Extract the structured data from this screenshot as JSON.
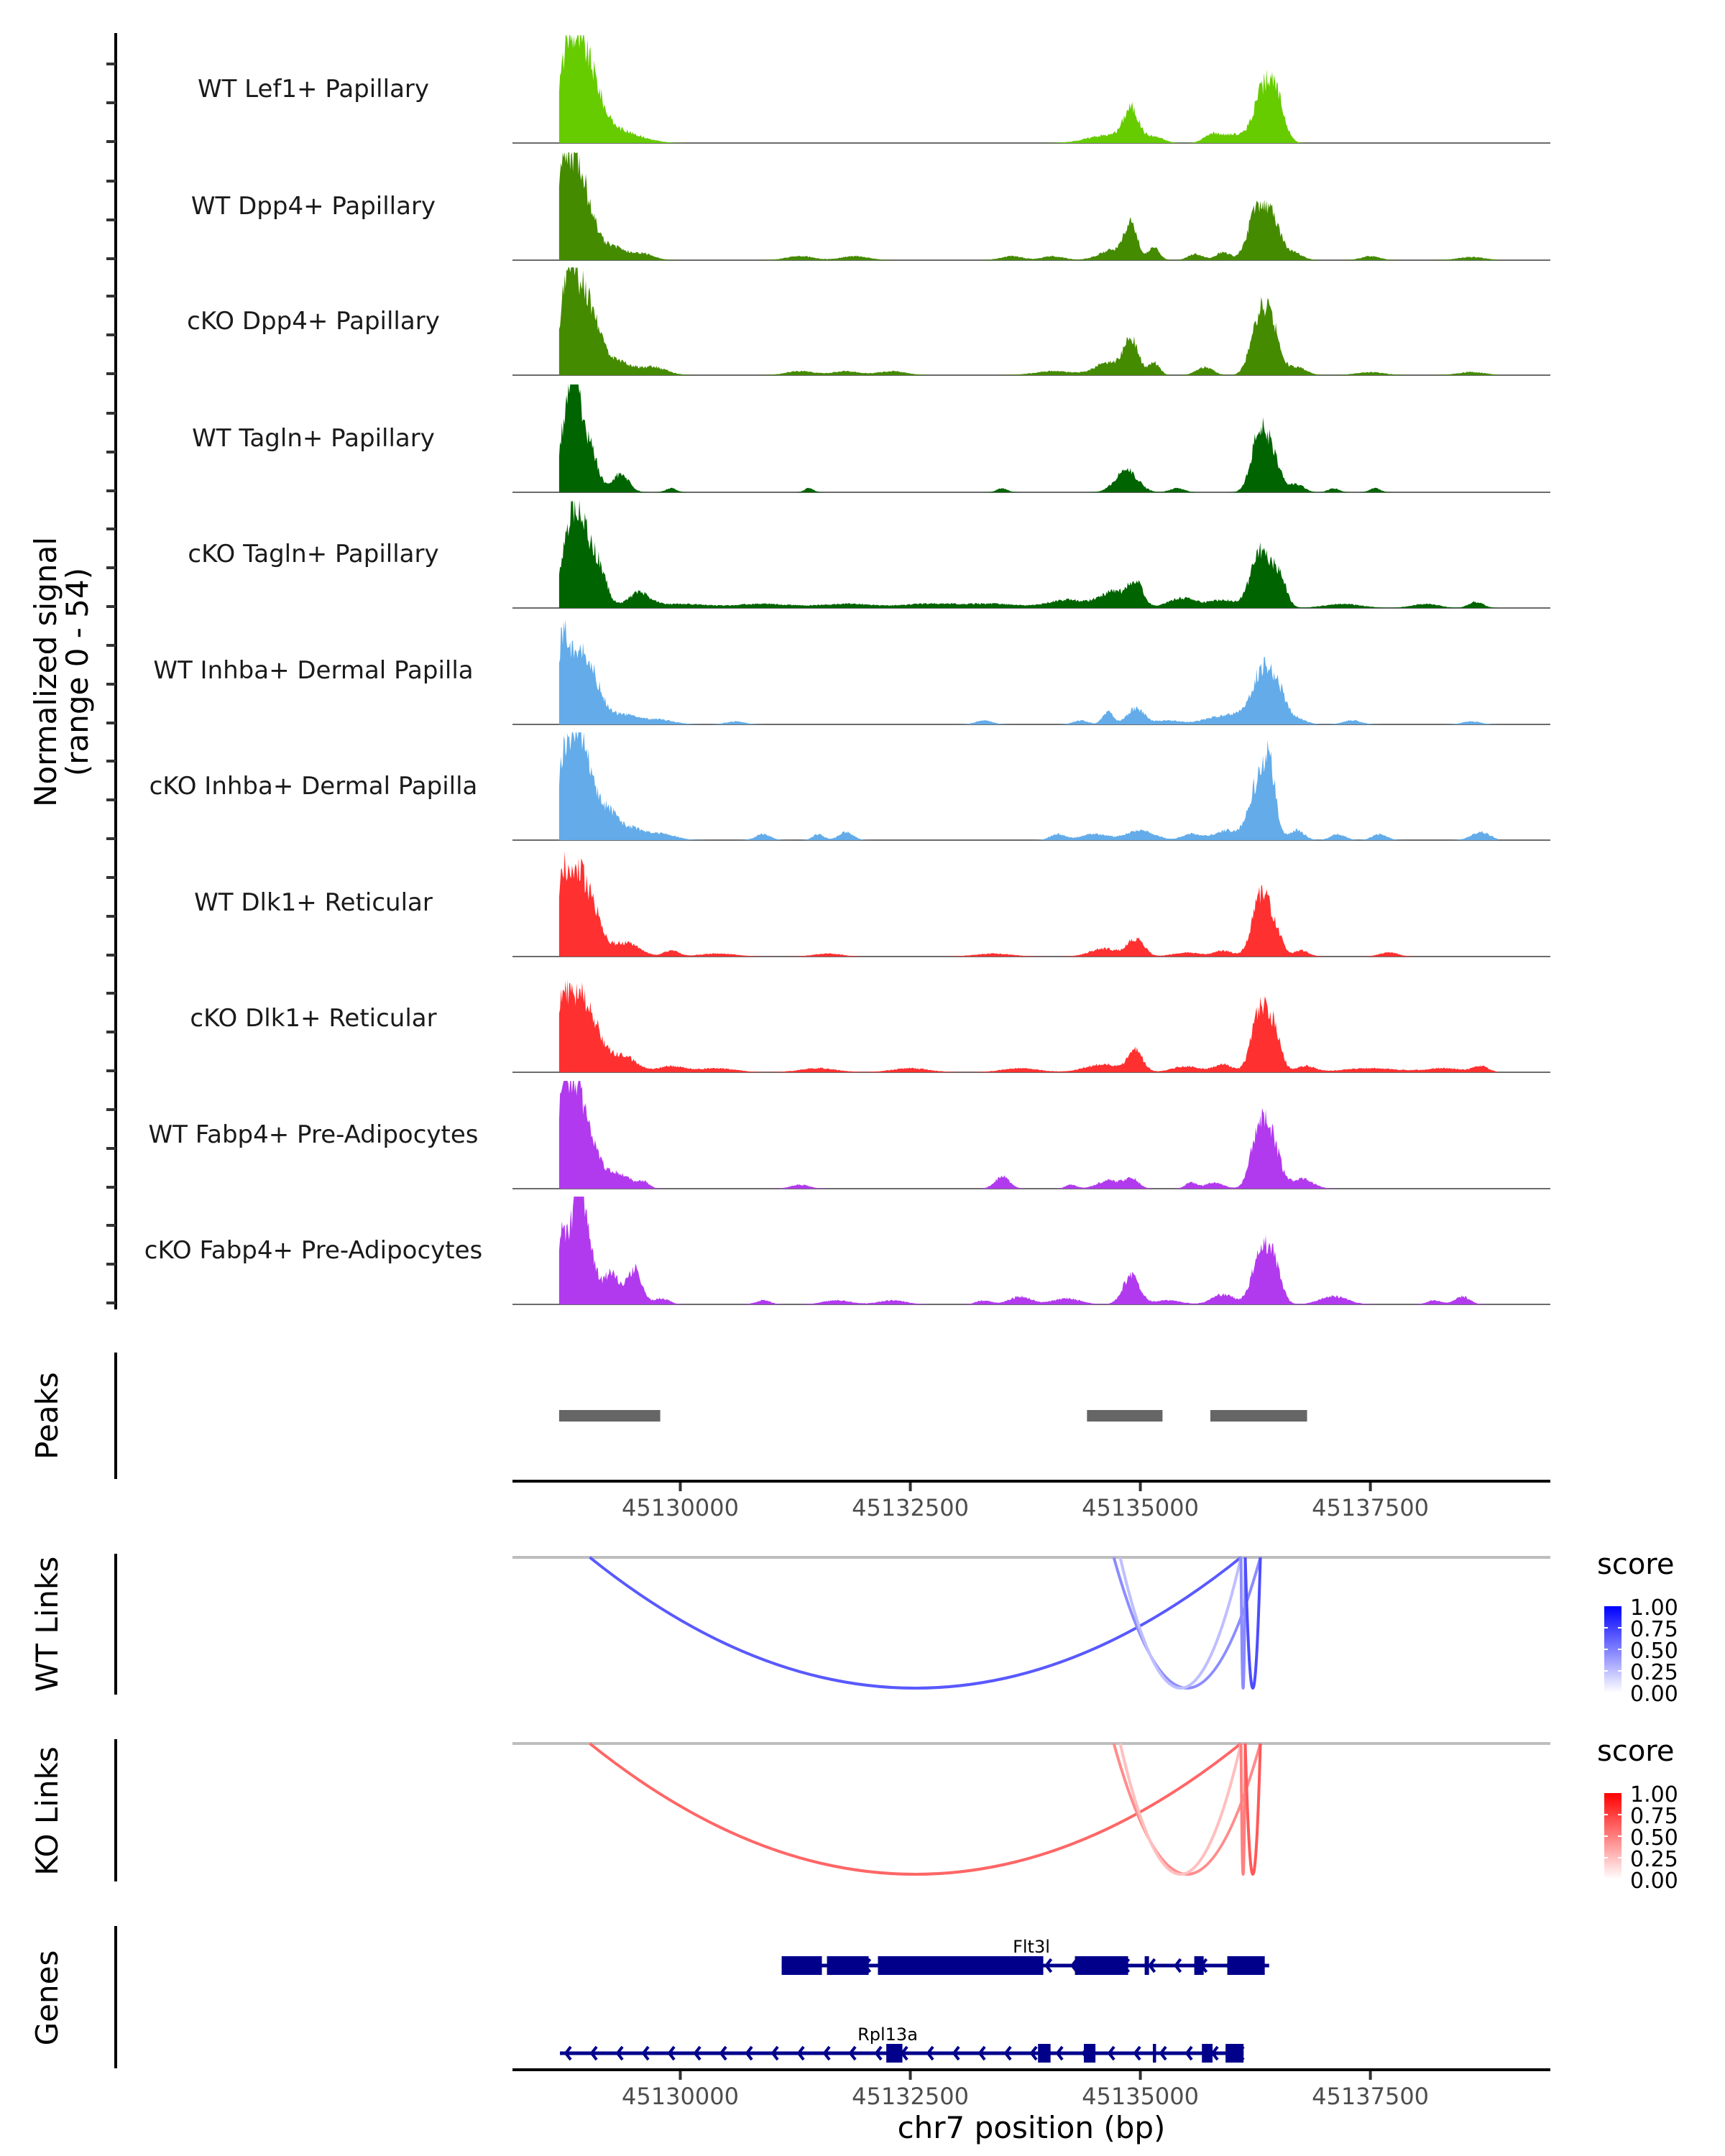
{
  "chart_data": {
    "type": "area",
    "title": "",
    "region": {
      "chrom": "chr7",
      "start": 45128176,
      "end": 45139456
    },
    "xlabel": "chr7 position (bp)",
    "x_ticks": [
      45130000,
      45132500,
      45135000,
      45137500
    ],
    "x_tick_labels": [
      "45130000",
      "45132500",
      "45135000",
      "45137500"
    ],
    "ylabel_line1": "Normalized signal",
    "ylabel_line2": "(range 0 - 54)",
    "ylim": [
      0,
      54
    ],
    "signal_start": 45128683,
    "signal_end": 45138890,
    "tracks": [
      {
        "name": "WT Lef1+ Papillary",
        "color": "#66CC00",
        "peaks": [
          [
            45128760,
            34,
            90
          ],
          [
            45128900,
            33,
            110
          ],
          [
            45129050,
            22,
            110
          ],
          [
            45129250,
            6,
            150
          ],
          [
            45129500,
            3,
            180
          ],
          [
            45134650,
            4,
            220
          ],
          [
            45134900,
            16,
            80
          ],
          [
            45135150,
            3,
            100
          ],
          [
            45135780,
            4,
            90
          ],
          [
            45136000,
            4,
            120
          ],
          [
            45136350,
            28,
            110
          ],
          [
            45136500,
            14,
            80
          ]
        ]
      },
      {
        "name": "WT Dpp4+ Papillary",
        "color": "#458B00",
        "peaks": [
          [
            45128720,
            44,
            60
          ],
          [
            45128850,
            38,
            80
          ],
          [
            45128980,
            24,
            100
          ],
          [
            45129250,
            7,
            150
          ],
          [
            45129600,
            3,
            120
          ],
          [
            45131300,
            2,
            150
          ],
          [
            45131900,
            2,
            150
          ],
          [
            45133600,
            2,
            120
          ],
          [
            45134050,
            2,
            120
          ],
          [
            45134700,
            5,
            150
          ],
          [
            45134900,
            17,
            70
          ],
          [
            45135150,
            6,
            60
          ],
          [
            45135600,
            3,
            80
          ],
          [
            45135900,
            4,
            80
          ],
          [
            45136250,
            22,
            90
          ],
          [
            45136420,
            22,
            90
          ],
          [
            45136650,
            4,
            100
          ],
          [
            45137500,
            2,
            100
          ],
          [
            45138600,
            1.5,
            150
          ]
        ]
      },
      {
        "name": "cKO Dpp4+ Papillary",
        "color": "#458B00",
        "peaks": [
          [
            45128760,
            36,
            80
          ],
          [
            45128900,
            32,
            100
          ],
          [
            45129050,
            22,
            100
          ],
          [
            45129300,
            7,
            150
          ],
          [
            45129700,
            4,
            150
          ],
          [
            45131300,
            2,
            150
          ],
          [
            45131800,
            2,
            150
          ],
          [
            45132300,
            2,
            150
          ],
          [
            45134050,
            2,
            200
          ],
          [
            45134650,
            6,
            150
          ],
          [
            45134900,
            17,
            80
          ],
          [
            45135150,
            6,
            60
          ],
          [
            45135700,
            4,
            90
          ],
          [
            45136280,
            24,
            90
          ],
          [
            45136420,
            24,
            90
          ],
          [
            45136700,
            4,
            100
          ],
          [
            45137500,
            1.5,
            150
          ],
          [
            45138600,
            1.5,
            150
          ]
        ]
      },
      {
        "name": "WT Tagln+ Papillary",
        "color": "#006400",
        "peaks": [
          [
            45128750,
            30,
            70
          ],
          [
            45128850,
            48,
            60
          ],
          [
            45129000,
            25,
            90
          ],
          [
            45129350,
            9,
            90
          ],
          [
            45129900,
            2,
            60
          ],
          [
            45131400,
            2,
            50
          ],
          [
            45133500,
            2,
            60
          ],
          [
            45134850,
            11,
            120
          ],
          [
            45135400,
            2,
            80
          ],
          [
            45136300,
            30,
            90
          ],
          [
            45136450,
            14,
            80
          ],
          [
            45136700,
            4,
            80
          ],
          [
            45137100,
            2,
            60
          ],
          [
            45137550,
            2,
            60
          ]
        ]
      },
      {
        "name": "cKO Tagln+ Papillary",
        "color": "#006400",
        "peaks": [
          [
            45128760,
            28,
            80
          ],
          [
            45128900,
            42,
            80
          ],
          [
            45129080,
            25,
            100
          ],
          [
            45129550,
            7,
            120
          ],
          [
            45130000,
            2,
            300
          ],
          [
            45130900,
            2,
            300
          ],
          [
            45131800,
            2,
            300
          ],
          [
            45132700,
            2,
            300
          ],
          [
            45133400,
            2,
            300
          ],
          [
            45134200,
            4,
            200
          ],
          [
            45134700,
            8,
            150
          ],
          [
            45134950,
            12,
            80
          ],
          [
            45135450,
            5,
            150
          ],
          [
            45135900,
            4,
            150
          ],
          [
            45136300,
            28,
            100
          ],
          [
            45136500,
            16,
            80
          ],
          [
            45137200,
            2,
            200
          ],
          [
            45138100,
            2,
            150
          ],
          [
            45138650,
            3,
            80
          ]
        ]
      },
      {
        "name": "WT Inhba+ Dermal Papilla",
        "color": "#63ACE9",
        "peaks": [
          [
            45128720,
            38,
            60
          ],
          [
            45128880,
            33,
            90
          ],
          [
            45129050,
            20,
            100
          ],
          [
            45129350,
            5,
            200
          ],
          [
            45129800,
            2,
            150
          ],
          [
            45130600,
            1.5,
            100
          ],
          [
            45133300,
            2,
            90
          ],
          [
            45134350,
            2,
            80
          ],
          [
            45134650,
            6,
            60
          ],
          [
            45134950,
            8,
            90
          ],
          [
            45135300,
            2,
            150
          ],
          [
            45135800,
            3,
            150
          ],
          [
            45136100,
            5,
            150
          ],
          [
            45136330,
            26,
            100
          ],
          [
            45136500,
            15,
            80
          ],
          [
            45136700,
            3,
            100
          ],
          [
            45137300,
            2,
            100
          ],
          [
            45138600,
            1.5,
            100
          ]
        ]
      },
      {
        "name": "cKO Inhba+ Dermal Papilla",
        "color": "#63ACE9",
        "peaks": [
          [
            45128720,
            30,
            60
          ],
          [
            45128850,
            42,
            80
          ],
          [
            45128980,
            34,
            90
          ],
          [
            45129200,
            14,
            100
          ],
          [
            45129450,
            6,
            150
          ],
          [
            45129800,
            3,
            150
          ],
          [
            45130900,
            3,
            80
          ],
          [
            45131500,
            3,
            60
          ],
          [
            45131800,
            4,
            80
          ],
          [
            45134100,
            3,
            80
          ],
          [
            45134500,
            3,
            150
          ],
          [
            45135000,
            5,
            150
          ],
          [
            45135550,
            3,
            100
          ],
          [
            45135950,
            5,
            150
          ],
          [
            45136250,
            24,
            80
          ],
          [
            45136400,
            38,
            70
          ],
          [
            45136700,
            5,
            80
          ],
          [
            45137150,
            3,
            80
          ],
          [
            45137600,
            3,
            80
          ],
          [
            45138700,
            4,
            100
          ]
        ]
      },
      {
        "name": "WT Dlk1+ Reticular",
        "color": "#FF3030",
        "peaks": [
          [
            45128720,
            36,
            60
          ],
          [
            45128880,
            36,
            90
          ],
          [
            45129050,
            22,
            100
          ],
          [
            45129400,
            7,
            150
          ],
          [
            45129900,
            3,
            80
          ],
          [
            45130400,
            1.5,
            200
          ],
          [
            45131600,
            1.5,
            150
          ],
          [
            45133400,
            1.5,
            200
          ],
          [
            45134600,
            4,
            150
          ],
          [
            45134950,
            9,
            90
          ],
          [
            45135500,
            2,
            150
          ],
          [
            45135900,
            3,
            100
          ],
          [
            45136300,
            28,
            90
          ],
          [
            45136450,
            14,
            80
          ],
          [
            45136750,
            3,
            80
          ],
          [
            45137700,
            2,
            100
          ]
        ]
      },
      {
        "name": "cKO Dlk1+ Reticular",
        "color": "#FF3030",
        "peaks": [
          [
            45128720,
            36,
            60
          ],
          [
            45128880,
            34,
            90
          ],
          [
            45129050,
            22,
            100
          ],
          [
            45129350,
            9,
            150
          ],
          [
            45129900,
            3,
            150
          ],
          [
            45130400,
            2,
            200
          ],
          [
            45131500,
            2,
            200
          ],
          [
            45132500,
            2,
            200
          ],
          [
            45133700,
            2,
            200
          ],
          [
            45134600,
            4,
            200
          ],
          [
            45134950,
            10,
            80
          ],
          [
            45135500,
            3,
            150
          ],
          [
            45135900,
            4,
            100
          ],
          [
            45136300,
            30,
            90
          ],
          [
            45136450,
            18,
            80
          ],
          [
            45136800,
            3,
            100
          ],
          [
            45137500,
            2,
            300
          ],
          [
            45138300,
            2,
            200
          ],
          [
            45138700,
            3,
            80
          ]
        ]
      },
      {
        "name": "WT Fabp4+ Pre-Adipocytes",
        "color": "#B23AEE",
        "peaks": [
          [
            45128720,
            40,
            60
          ],
          [
            45128850,
            46,
            80
          ],
          [
            45129000,
            24,
            100
          ],
          [
            45129300,
            8,
            150
          ],
          [
            45129600,
            3,
            60
          ],
          [
            45131300,
            2,
            100
          ],
          [
            45133500,
            6,
            80
          ],
          [
            45134250,
            2,
            60
          ],
          [
            45134650,
            4,
            120
          ],
          [
            45134900,
            5,
            80
          ],
          [
            45135550,
            3,
            60
          ],
          [
            45135800,
            3,
            100
          ],
          [
            45136300,
            32,
            90
          ],
          [
            45136450,
            18,
            80
          ],
          [
            45136750,
            5,
            120
          ]
        ]
      },
      {
        "name": "cKO Fabp4+ Pre-Adipocytes",
        "color": "#B23AEE",
        "peaks": [
          [
            45128720,
            36,
            60
          ],
          [
            45128880,
            52,
            60
          ],
          [
            45129000,
            30,
            80
          ],
          [
            45129250,
            16,
            80
          ],
          [
            45129500,
            18,
            80
          ],
          [
            45129800,
            3,
            80
          ],
          [
            45130900,
            2,
            80
          ],
          [
            45131700,
            2,
            150
          ],
          [
            45132300,
            2,
            150
          ],
          [
            45133300,
            2,
            80
          ],
          [
            45133700,
            4,
            120
          ],
          [
            45134200,
            3,
            150
          ],
          [
            45134900,
            14,
            90
          ],
          [
            45135300,
            2,
            150
          ],
          [
            45135900,
            5,
            120
          ],
          [
            45136300,
            24,
            90
          ],
          [
            45136450,
            20,
            80
          ],
          [
            45137100,
            4,
            150
          ],
          [
            45138200,
            2,
            80
          ],
          [
            45138500,
            4,
            80
          ]
        ]
      }
    ],
    "peaks": {
      "title": "Peaks",
      "color": "#666666",
      "ranges": [
        [
          45128683,
          45129782
        ],
        [
          45134420,
          45135241
        ],
        [
          45135761,
          45136812
        ]
      ]
    },
    "links": [
      {
        "title": "WT Links",
        "legend_title": "score",
        "low": "#FFFFFF",
        "high": "#0000FF",
        "arcs": [
          {
            "start": 45129016,
            "end": 45136094,
            "score": 0.65
          },
          {
            "start": 45134711,
            "end": 45136305,
            "score": 0.45
          },
          {
            "start": 45134781,
            "end": 45136094,
            "score": 0.25
          },
          {
            "start": 45136094,
            "end": 45136140,
            "score": 0.45
          },
          {
            "start": 45136140,
            "end": 45136305,
            "score": 0.7
          }
        ]
      },
      {
        "title": "KO Links",
        "legend_title": "score",
        "low": "#FFFFFF",
        "high": "#FF0000",
        "arcs": [
          {
            "start": 45129016,
            "end": 45136094,
            "score": 0.6
          },
          {
            "start": 45134711,
            "end": 45136305,
            "score": 0.45
          },
          {
            "start": 45134781,
            "end": 45136094,
            "score": 0.25
          },
          {
            "start": 45136094,
            "end": 45136140,
            "score": 0.5
          },
          {
            "start": 45136140,
            "end": 45136305,
            "score": 0.65
          }
        ]
      }
    ],
    "legend_ticks": [
      "1.00",
      "0.75",
      "0.50",
      "0.25",
      "0.00"
    ],
    "genes": {
      "title": "Genes",
      "color": "#00008B",
      "items": [
        {
          "name": "Flt3l",
          "strand": "-",
          "start": 45131102,
          "end": 45136400,
          "exons": [
            [
              45131102,
              45131539
            ],
            [
              45131594,
              45132047
            ],
            [
              45132148,
              45133945
            ],
            [
              45134289,
              45134867
            ],
            [
              45135047,
              45135094
            ],
            [
              45135586,
              45135688
            ],
            [
              45135945,
              45136352
            ]
          ]
        },
        {
          "name": "Rpl13a",
          "strand": "-",
          "start": 45128692,
          "end": 45136122,
          "exons": [
            [
              45132239,
              45132414
            ],
            [
              45133888,
              45134024
            ],
            [
              45134386,
              45134512
            ],
            [
              45135136,
              45135171
            ],
            [
              45135669,
              45135785
            ],
            [
              45135926,
              45136122
            ]
          ]
        }
      ]
    }
  }
}
